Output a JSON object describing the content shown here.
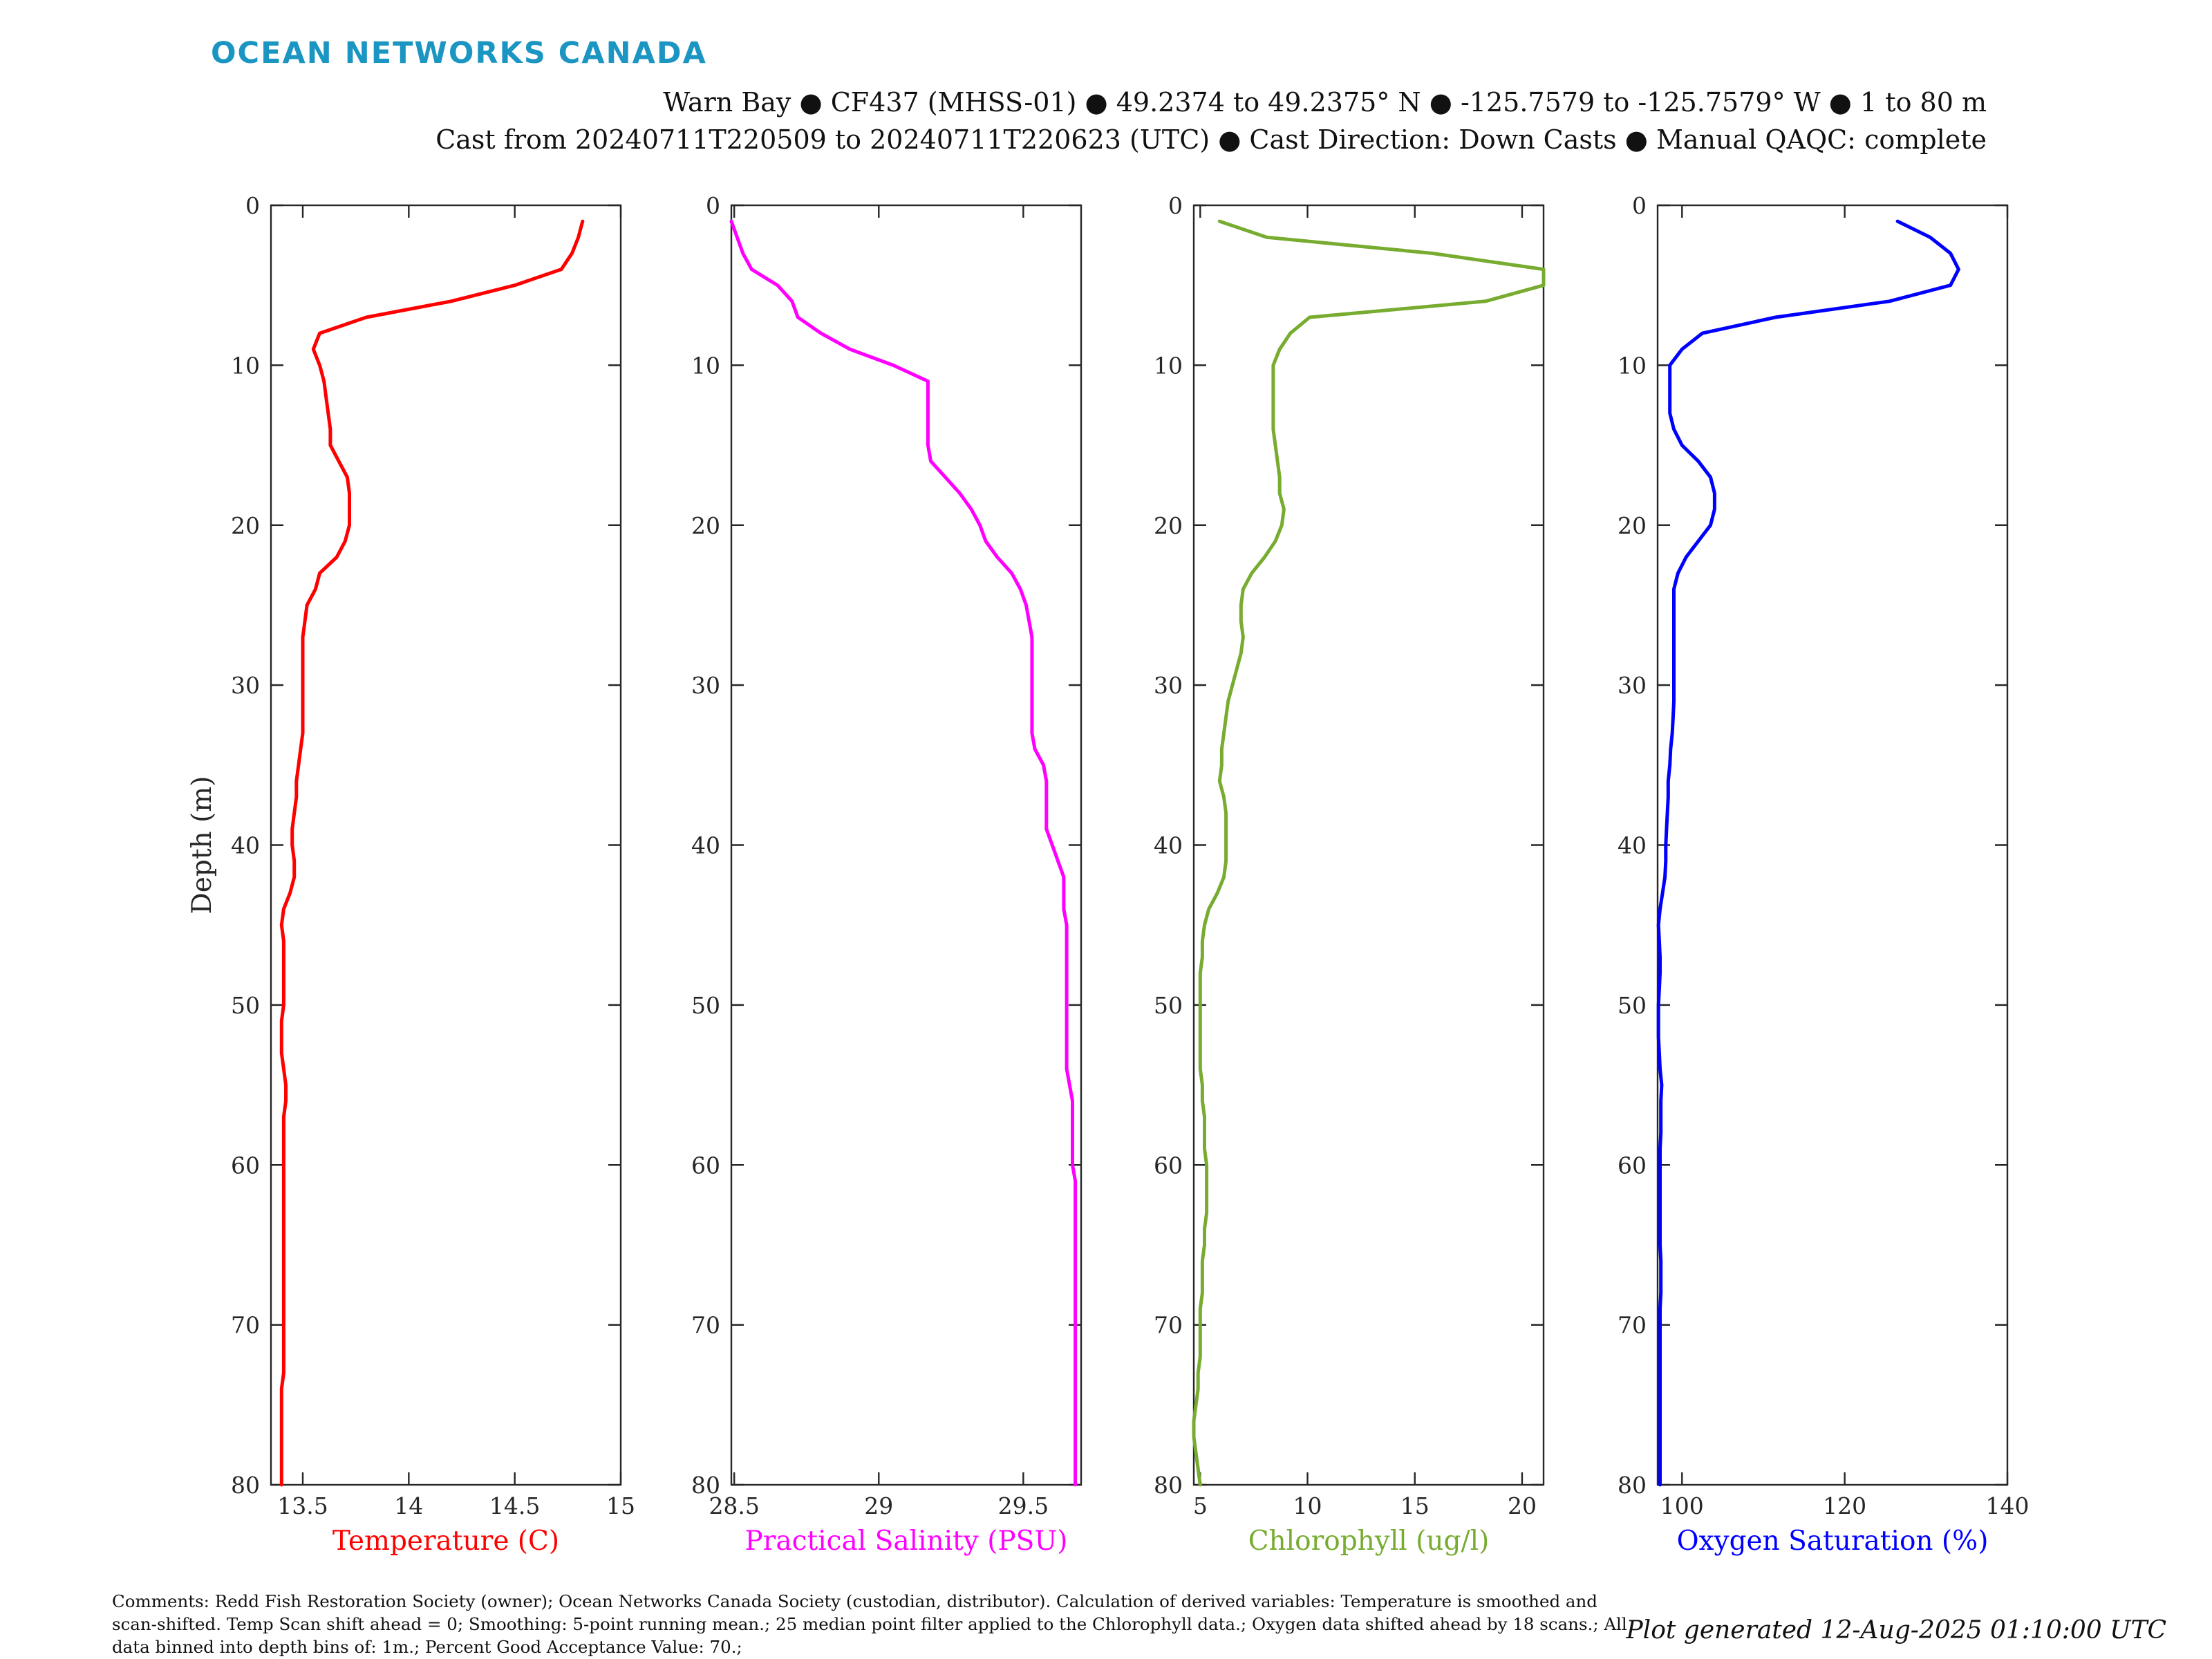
{
  "header": {
    "brand": "OCEAN NETWORKS CANADA",
    "title_line1": "Warn Bay ● CF437 (MHSS-01) ● 49.2374 to 49.2375° N ● -125.7579 to -125.7579° W ● 1 to 80 m",
    "title_line2": "Cast from 20240711T220509 to 20240711T220623 (UTC) ● Cast Direction: Down Casts ● Manual QAQC: complete"
  },
  "footer": {
    "comments": "Comments: Redd Fish Restoration Society (owner); Ocean Networks Canada Society (custodian, distributor). Calculation of derived variables: Temperature is smoothed and scan-shifted. Temp Scan shift ahead = 0; Smoothing: 5-point running mean.; 25 median point filter applied to the Chlorophyll data.; Oxygen data shifted ahead by 18 scans.; All data binned into depth bins of: 1m.; Percent Good Acceptance Value: 70.;",
    "generated": "Plot generated 12-Aug-2025 01:10:00 UTC"
  },
  "chart_data": [
    {
      "type": "line",
      "xlabel": "Temperature (C)",
      "ylabel": "Depth (m)",
      "color": "#ff0000",
      "xlim": [
        13.35,
        15
      ],
      "xticks": [
        13.5,
        14,
        14.5,
        15
      ],
      "ylim": [
        80,
        0
      ],
      "yticks": [
        0,
        10,
        20,
        30,
        40,
        50,
        60,
        70,
        80
      ],
      "x": [
        14.82,
        14.8,
        14.77,
        14.72,
        14.5,
        14.2,
        13.8,
        13.58,
        13.55,
        13.58,
        13.6,
        13.61,
        13.62,
        13.63,
        13.63,
        13.67,
        13.71,
        13.72,
        13.72,
        13.72,
        13.7,
        13.66,
        13.58,
        13.56,
        13.52,
        13.51,
        13.5,
        13.5,
        13.5,
        13.5,
        13.5,
        13.5,
        13.5,
        13.49,
        13.48,
        13.47,
        13.47,
        13.46,
        13.45,
        13.45,
        13.46,
        13.46,
        13.44,
        13.41,
        13.4,
        13.41,
        13.41,
        13.41,
        13.41,
        13.41,
        13.4,
        13.4,
        13.4,
        13.41,
        13.42,
        13.42,
        13.41,
        13.41,
        13.41,
        13.41,
        13.41,
        13.41,
        13.41,
        13.41,
        13.41,
        13.41,
        13.41,
        13.41,
        13.41,
        13.41,
        13.41,
        13.41,
        13.41,
        13.4,
        13.4,
        13.4,
        13.4,
        13.4,
        13.4,
        13.4
      ],
      "y": [
        1,
        2,
        3,
        4,
        5,
        6,
        7,
        8,
        9,
        10,
        11,
        12,
        13,
        14,
        15,
        16,
        17,
        18,
        19,
        20,
        21,
        22,
        23,
        24,
        25,
        26,
        27,
        28,
        29,
        30,
        31,
        32,
        33,
        34,
        35,
        36,
        37,
        38,
        39,
        40,
        41,
        42,
        43,
        44,
        45,
        46,
        47,
        48,
        49,
        50,
        51,
        52,
        53,
        54,
        55,
        56,
        57,
        58,
        59,
        60,
        61,
        62,
        63,
        64,
        65,
        66,
        67,
        68,
        69,
        70,
        71,
        72,
        73,
        74,
        75,
        76,
        77,
        78,
        79,
        80
      ]
    },
    {
      "type": "line",
      "xlabel": "Practical Salinity (PSU)",
      "color": "#ff00ff",
      "xlim": [
        28.49,
        29.7
      ],
      "xticks": [
        28.5,
        29,
        29.5
      ],
      "ylim": [
        80,
        0
      ],
      "yticks": [
        0,
        10,
        20,
        30,
        40,
        50,
        60,
        70,
        80
      ],
      "x": [
        28.49,
        28.51,
        28.53,
        28.56,
        28.65,
        28.7,
        28.72,
        28.8,
        28.9,
        29.05,
        29.17,
        29.17,
        29.17,
        29.17,
        29.17,
        29.18,
        29.23,
        29.28,
        29.32,
        29.35,
        29.37,
        29.41,
        29.46,
        29.49,
        29.51,
        29.52,
        29.53,
        29.53,
        29.53,
        29.53,
        29.53,
        29.53,
        29.53,
        29.54,
        29.57,
        29.58,
        29.58,
        29.58,
        29.58,
        29.6,
        29.62,
        29.64,
        29.64,
        29.64,
        29.65,
        29.65,
        29.65,
        29.65,
        29.65,
        29.65,
        29.65,
        29.65,
        29.65,
        29.65,
        29.66,
        29.67,
        29.67,
        29.67,
        29.67,
        29.67,
        29.68,
        29.68,
        29.68,
        29.68,
        29.68,
        29.68,
        29.68,
        29.68,
        29.68,
        29.68,
        29.68,
        29.68,
        29.68,
        29.68,
        29.68,
        29.68,
        29.68,
        29.68,
        29.68,
        29.68
      ],
      "y": [
        1,
        2,
        3,
        4,
        5,
        6,
        7,
        8,
        9,
        10,
        11,
        12,
        13,
        14,
        15,
        16,
        17,
        18,
        19,
        20,
        21,
        22,
        23,
        24,
        25,
        26,
        27,
        28,
        29,
        30,
        31,
        32,
        33,
        34,
        35,
        36,
        37,
        38,
        39,
        40,
        41,
        42,
        43,
        44,
        45,
        46,
        47,
        48,
        49,
        50,
        51,
        52,
        53,
        54,
        55,
        56,
        57,
        58,
        59,
        60,
        61,
        62,
        63,
        64,
        65,
        66,
        67,
        68,
        69,
        70,
        71,
        72,
        73,
        74,
        75,
        76,
        77,
        78,
        79,
        80
      ]
    },
    {
      "type": "line",
      "xlabel": "Chlorophyll (ug/l)",
      "color": "#77ac30",
      "xlim": [
        4.7,
        21
      ],
      "xticks": [
        5,
        10,
        15,
        20
      ],
      "ylim": [
        80,
        0
      ],
      "yticks": [
        0,
        10,
        20,
        30,
        40,
        50,
        60,
        70,
        80
      ],
      "x": [
        5.9,
        8.1,
        15.8,
        21,
        21,
        18.3,
        10.1,
        9.2,
        8.7,
        8.4,
        8.4,
        8.4,
        8.4,
        8.4,
        8.5,
        8.6,
        8.7,
        8.7,
        8.9,
        8.8,
        8.5,
        8.0,
        7.4,
        7.0,
        6.9,
        6.9,
        7.0,
        6.9,
        6.7,
        6.5,
        6.3,
        6.2,
        6.1,
        6.0,
        6.0,
        5.9,
        6.1,
        6.2,
        6.2,
        6.2,
        6.2,
        6.1,
        5.8,
        5.4,
        5.2,
        5.1,
        5.1,
        5.0,
        5.0,
        5.0,
        5.0,
        5.0,
        5.0,
        5.0,
        5.1,
        5.1,
        5.2,
        5.2,
        5.2,
        5.3,
        5.3,
        5.3,
        5.3,
        5.2,
        5.2,
        5.1,
        5.1,
        5.1,
        5.0,
        5.0,
        5.0,
        5.0,
        4.9,
        4.9,
        4.8,
        4.7,
        4.7,
        4.8,
        4.9,
        5.0
      ],
      "y": [
        1,
        2,
        3,
        4,
        5,
        6,
        7,
        8,
        9,
        10,
        11,
        12,
        13,
        14,
        15,
        16,
        17,
        18,
        19,
        20,
        21,
        22,
        23,
        24,
        25,
        26,
        27,
        28,
        29,
        30,
        31,
        32,
        33,
        34,
        35,
        36,
        37,
        38,
        39,
        40,
        41,
        42,
        43,
        44,
        45,
        46,
        47,
        48,
        49,
        50,
        51,
        52,
        53,
        54,
        55,
        56,
        57,
        58,
        59,
        60,
        61,
        62,
        63,
        64,
        65,
        66,
        67,
        68,
        69,
        70,
        71,
        72,
        73,
        74,
        75,
        76,
        77,
        78,
        79,
        80
      ]
    },
    {
      "type": "line",
      "xlabel": "Oxygen Saturation (%)",
      "color": "#0000ff",
      "xlim": [
        97,
        140
      ],
      "xticks": [
        100,
        120,
        140
      ],
      "ylim": [
        80,
        0
      ],
      "yticks": [
        0,
        10,
        20,
        30,
        40,
        50,
        60,
        70,
        80
      ],
      "x": [
        126.5,
        130.5,
        133,
        134,
        133,
        125.5,
        111.5,
        102.5,
        100,
        98.5,
        98.5,
        98.5,
        98.5,
        99,
        100,
        102,
        103.5,
        104,
        104,
        103.5,
        102,
        100.5,
        99.5,
        99,
        99,
        99,
        99,
        99,
        99,
        99,
        99,
        98.9,
        98.8,
        98.6,
        98.5,
        98.3,
        98.3,
        98.2,
        98.1,
        98.0,
        98.0,
        97.9,
        97.6,
        97.3,
        97.1,
        97.2,
        97.3,
        97.3,
        97.2,
        97.1,
        97.1,
        97.1,
        97.2,
        97.3,
        97.5,
        97.4,
        97.4,
        97.4,
        97.3,
        97.3,
        97.3,
        97.3,
        97.3,
        97.3,
        97.3,
        97.4,
        97.4,
        97.4,
        97.3,
        97.3,
        97.3,
        97.3,
        97.3,
        97.3,
        97.3,
        97.3,
        97.3,
        97.3,
        97.3,
        97.3
      ],
      "y": [
        1,
        2,
        3,
        4,
        5,
        6,
        7,
        8,
        9,
        10,
        11,
        12,
        13,
        14,
        15,
        16,
        17,
        18,
        19,
        20,
        21,
        22,
        23,
        24,
        25,
        26,
        27,
        28,
        29,
        30,
        31,
        32,
        33,
        34,
        35,
        36,
        37,
        38,
        39,
        40,
        41,
        42,
        43,
        44,
        45,
        46,
        47,
        48,
        49,
        50,
        51,
        52,
        53,
        54,
        55,
        56,
        57,
        58,
        59,
        60,
        61,
        62,
        63,
        64,
        65,
        66,
        67,
        68,
        69,
        70,
        71,
        72,
        73,
        74,
        75,
        76,
        77,
        78,
        79,
        80
      ]
    }
  ]
}
